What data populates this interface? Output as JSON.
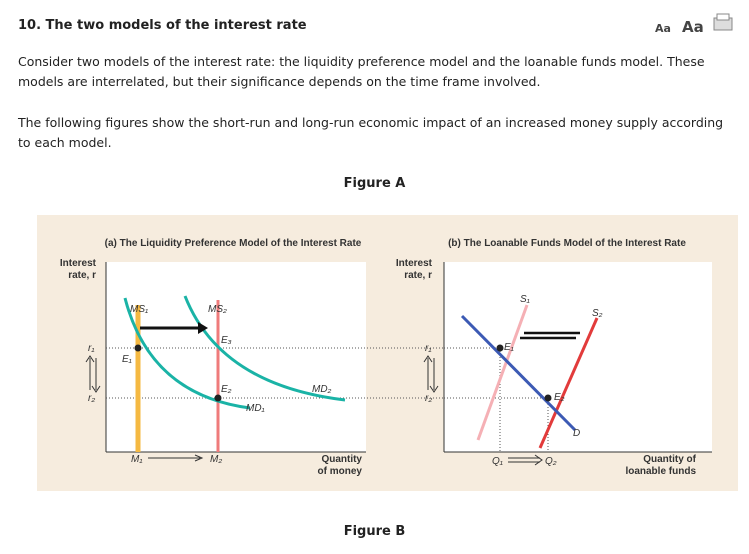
{
  "header": {
    "title": "10. The two models of the interest rate",
    "font_small": "Aa",
    "font_large": "Aa"
  },
  "paragraphs": [
    "Consider two models of the interest rate: the liquidity preference model and the loanable funds model. These models are interrelated, but their significance depends on the time frame involved.",
    "The following figures show the short-run and long-run economic impact of an increased money supply according to each model."
  ],
  "figure_a": {
    "caption": "Figure A",
    "panel_a": {
      "title": "(a) The Liquidity Preference Model of the Interest Rate",
      "y_axis_label": [
        "Interest",
        "rate, r"
      ],
      "x_axis_label": [
        "Quantity",
        "of money"
      ],
      "r1": "r₁",
      "r2": "r₂",
      "ms1": "MS₁",
      "ms2": "MS₂",
      "e1": "E₁",
      "e2": "E₂",
      "e3": "E₃",
      "md1": "MD₁",
      "md2": "MD₂",
      "m1": "M₁",
      "m2": "M₂"
    },
    "panel_b": {
      "title": "(b) The Loanable Funds Model of the Interest Rate",
      "y_axis_label": [
        "Interest",
        "rate, r"
      ],
      "x_axis_label": [
        "Quantity of",
        "loanable funds"
      ],
      "r1": "r₁",
      "r2": "r₂",
      "s1": "S₁",
      "s2": "S₂",
      "e1": "E₁",
      "e2": "E₂",
      "d": "D",
      "q1": "Q₁",
      "q2": "Q₂"
    }
  },
  "figure_b": {
    "caption": "Figure B"
  }
}
